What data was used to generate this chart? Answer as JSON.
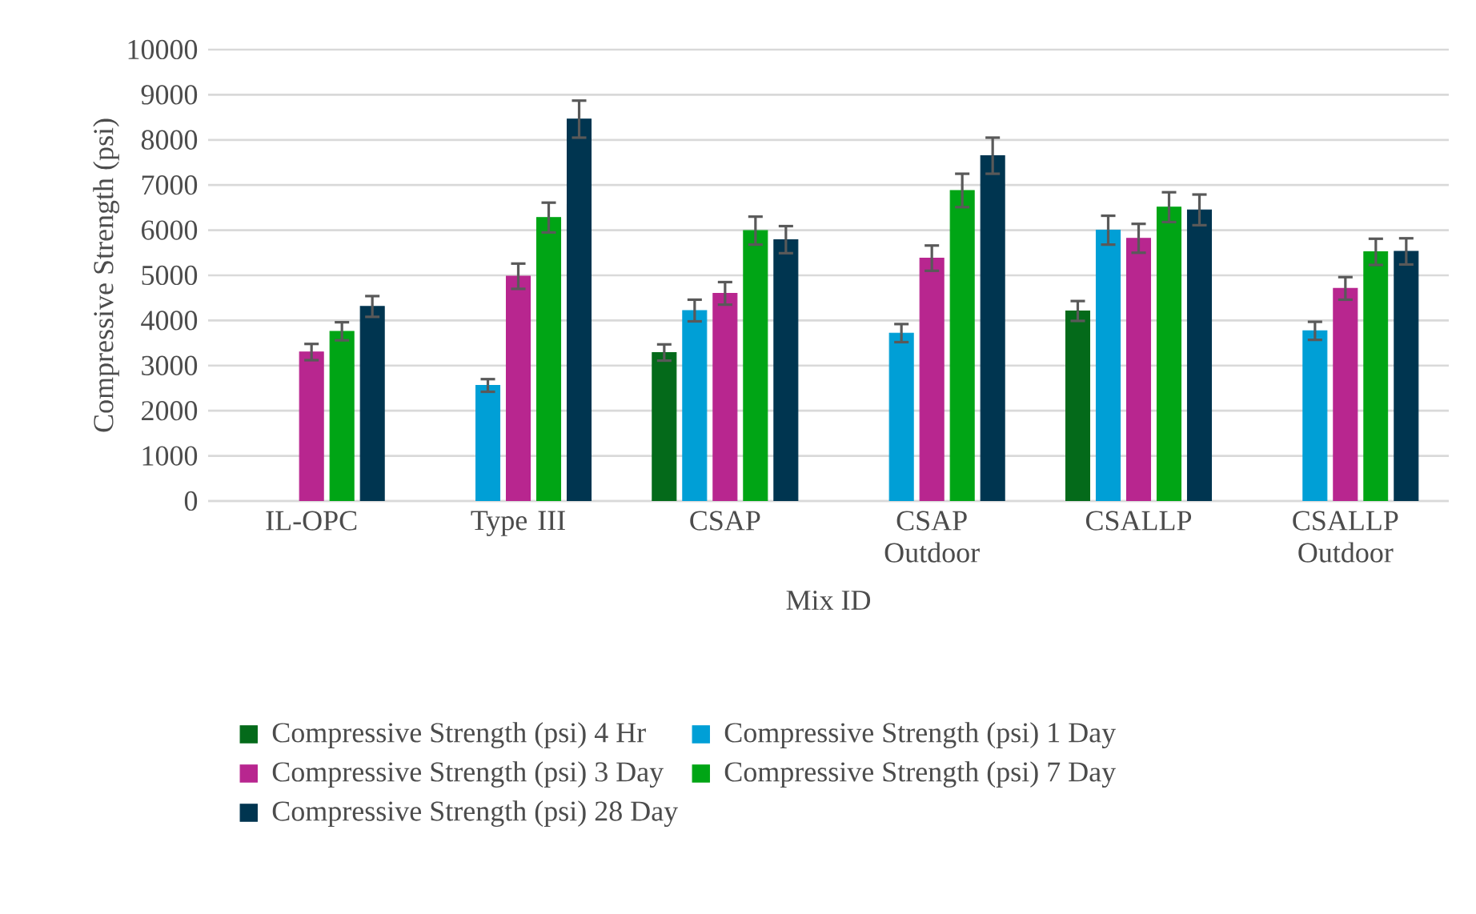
{
  "chart_data": {
    "type": "bar",
    "xlabel": "Mix ID",
    "ylabel": "Compressive Strength (psi)",
    "categories": [
      "IL-OPC",
      "Type III",
      "CSAP",
      "CSAP Outdoor",
      "CSALLP",
      "CSALLP Outdoor"
    ],
    "series": [
      {
        "name": "Compressive Strength (psi) 4 Hr",
        "color": "#046a1a",
        "values": [
          null,
          null,
          3290,
          null,
          4210,
          null
        ],
        "errors": [
          null,
          null,
          180,
          null,
          220,
          null
        ]
      },
      {
        "name": "Compressive Strength (psi) 1 Day",
        "color": "#009fd6",
        "values": [
          null,
          2560,
          4220,
          3720,
          6000,
          3770
        ],
        "errors": [
          null,
          140,
          240,
          200,
          320,
          200
        ]
      },
      {
        "name": "Compressive Strength (psi) 3 Day",
        "color": "#b8268f",
        "values": [
          3300,
          4980,
          4600,
          5380,
          5820,
          4710
        ],
        "errors": [
          180,
          280,
          250,
          280,
          320,
          250
        ]
      },
      {
        "name": "Compressive Strength (psi) 7 Day",
        "color": "#00a515",
        "values": [
          3760,
          6280,
          5990,
          6880,
          6510,
          5520
        ],
        "errors": [
          200,
          330,
          310,
          370,
          330,
          290
        ]
      },
      {
        "name": "Compressive Strength (psi) 28 Day",
        "color": "#003550",
        "values": [
          4310,
          8460,
          5790,
          7650,
          6450,
          5530
        ],
        "errors": [
          230,
          410,
          300,
          400,
          340,
          290
        ]
      }
    ],
    "ylim": [
      0,
      10000
    ],
    "yticks": [
      0,
      1000,
      2000,
      3000,
      4000,
      5000,
      6000,
      7000,
      8000,
      9000,
      10000
    ],
    "grid": "y",
    "legend": "bottom"
  }
}
